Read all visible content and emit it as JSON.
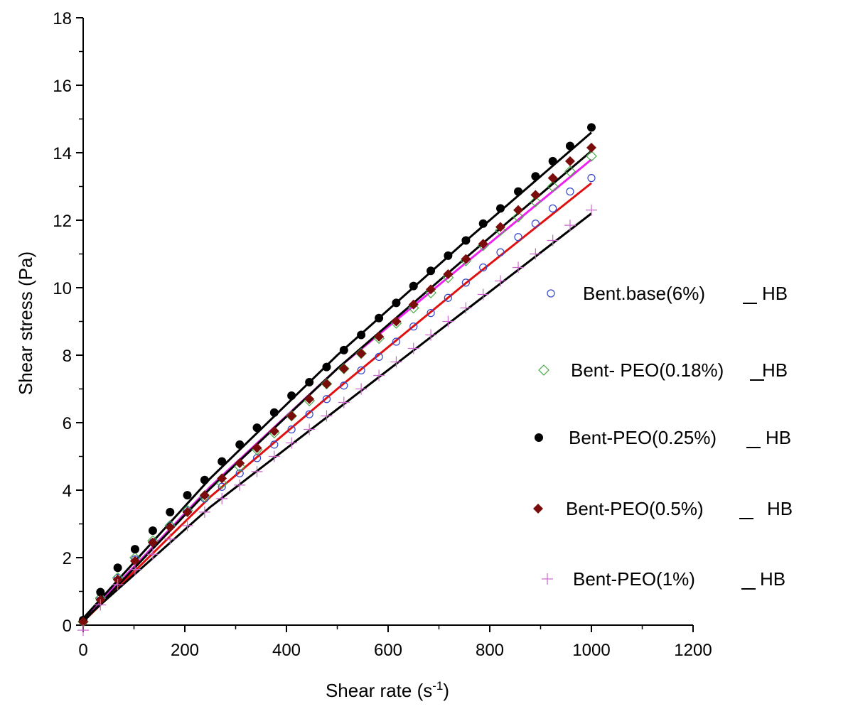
{
  "chart_data": {
    "type": "scatter",
    "xlabel": "Shear rate (s",
    "xlabel_sup": "-1",
    "xlabel_end": ")",
    "ylabel": "Shear  stress (Pa)",
    "xlim": [
      0,
      1200
    ],
    "ylim": [
      0,
      18
    ],
    "xticks": [
      "0",
      "200",
      "400",
      "600",
      "800",
      "1000",
      "1200"
    ],
    "yticks": [
      "0",
      "2",
      "4",
      "6",
      "8",
      "10",
      "12",
      "14",
      "16",
      "18"
    ],
    "grid": false,
    "legend_position": "right",
    "fit_label": "HB",
    "series": [
      {
        "name": "Bent.base(6%)",
        "marker": "circle-open",
        "color": "#3344cc",
        "fit_color": "#e01010",
        "x": [
          0,
          34,
          68,
          102,
          137,
          171,
          205,
          239,
          273,
          308,
          342,
          376,
          410,
          445,
          479,
          513,
          547,
          582,
          616,
          650,
          684,
          718,
          753,
          787,
          821,
          856,
          890,
          924,
          958,
          1000
        ],
        "y": [
          0.1,
          0.8,
          1.4,
          1.95,
          2.45,
          2.95,
          3.4,
          3.75,
          4.1,
          4.5,
          4.95,
          5.35,
          5.8,
          6.25,
          6.7,
          7.1,
          7.55,
          7.95,
          8.4,
          8.85,
          9.25,
          9.7,
          10.15,
          10.6,
          11.05,
          11.5,
          11.9,
          12.35,
          12.85,
          13.25
        ],
        "fit": [
          [
            0,
            0.1
          ],
          [
            250,
            3.8
          ],
          [
            500,
            7.0
          ],
          [
            750,
            10.1
          ],
          [
            1000,
            13.1
          ]
        ]
      },
      {
        "name": "Bent- PEO(0.18%)",
        "marker": "diamond-open",
        "color": "#44aa44",
        "fit_color": "#ee22ee",
        "x": [
          0,
          34,
          68,
          102,
          137,
          171,
          205,
          239,
          273,
          308,
          342,
          376,
          410,
          445,
          479,
          513,
          547,
          582,
          616,
          650,
          684,
          718,
          753,
          787,
          821,
          856,
          890,
          924,
          958,
          1000
        ],
        "y": [
          0.1,
          0.8,
          1.4,
          2.0,
          2.5,
          2.95,
          3.4,
          3.8,
          4.2,
          4.7,
          5.2,
          5.7,
          6.2,
          6.65,
          7.15,
          7.6,
          8.05,
          8.5,
          8.95,
          9.4,
          9.85,
          10.3,
          10.8,
          11.25,
          11.7,
          12.1,
          12.55,
          13.0,
          13.45,
          13.9
        ],
        "fit": [
          [
            0,
            0.15
          ],
          [
            250,
            4.1
          ],
          [
            500,
            7.6
          ],
          [
            750,
            10.7
          ],
          [
            1000,
            13.8
          ]
        ]
      },
      {
        "name": "Bent-PEO(0.25%)",
        "marker": "circle-filled",
        "color": "#000000",
        "fit_color": "#000000",
        "x": [
          0,
          34,
          68,
          102,
          137,
          171,
          205,
          239,
          273,
          308,
          342,
          376,
          410,
          445,
          479,
          513,
          547,
          582,
          616,
          650,
          684,
          718,
          753,
          787,
          821,
          856,
          890,
          924,
          958,
          1000
        ],
        "y": [
          0.15,
          0.98,
          1.7,
          2.25,
          2.8,
          3.35,
          3.85,
          4.3,
          4.85,
          5.35,
          5.85,
          6.3,
          6.8,
          7.2,
          7.65,
          8.15,
          8.6,
          9.1,
          9.55,
          10.05,
          10.5,
          10.95,
          11.4,
          11.9,
          12.35,
          12.85,
          13.3,
          13.75,
          14.2,
          14.75
        ],
        "fit": [
          [
            0,
            0.2
          ],
          [
            250,
            4.35
          ],
          [
            500,
            8.0
          ],
          [
            750,
            11.35
          ],
          [
            1000,
            14.6
          ]
        ]
      },
      {
        "name": "Bent-PEO(0.5%)",
        "marker": "diamond-filled",
        "color": "#7a0c0c",
        "fit_color": "#000000",
        "x": [
          0,
          34,
          68,
          102,
          137,
          171,
          205,
          239,
          273,
          308,
          342,
          376,
          410,
          445,
          479,
          513,
          547,
          582,
          616,
          650,
          684,
          718,
          753,
          787,
          821,
          856,
          890,
          924,
          958,
          1000
        ],
        "y": [
          0.1,
          0.75,
          1.35,
          1.9,
          2.45,
          2.9,
          3.35,
          3.85,
          4.35,
          4.8,
          5.25,
          5.75,
          6.2,
          6.7,
          7.15,
          7.6,
          8.05,
          8.55,
          9.0,
          9.5,
          9.95,
          10.4,
          10.85,
          11.3,
          11.8,
          12.3,
          12.75,
          13.25,
          13.75,
          14.15
        ],
        "fit": [
          [
            0,
            0.1
          ],
          [
            250,
            4.05
          ],
          [
            500,
            7.6
          ],
          [
            750,
            10.85
          ],
          [
            1000,
            14.05
          ]
        ]
      },
      {
        "name": "Bent-PEO(1%)",
        "marker": "plus",
        "color": "#cc66cc",
        "fit_color": "#000000",
        "x": [
          0,
          34,
          68,
          102,
          137,
          171,
          205,
          239,
          273,
          308,
          342,
          376,
          410,
          445,
          479,
          513,
          547,
          582,
          616,
          650,
          684,
          718,
          753,
          787,
          821,
          856,
          890,
          924,
          958,
          1000
        ],
        "y": [
          -0.15,
          0.6,
          1.2,
          1.65,
          2.1,
          2.55,
          2.95,
          3.35,
          3.75,
          4.15,
          4.55,
          5.0,
          5.4,
          5.8,
          6.2,
          6.6,
          7.0,
          7.4,
          7.8,
          8.2,
          8.6,
          9.0,
          9.4,
          9.8,
          10.2,
          10.6,
          11.0,
          11.4,
          11.85,
          12.3
        ],
        "fit": [
          [
            0,
            0.15
          ],
          [
            250,
            3.5
          ],
          [
            500,
            6.4
          ],
          [
            750,
            9.3
          ],
          [
            1000,
            12.2
          ]
        ]
      }
    ]
  }
}
